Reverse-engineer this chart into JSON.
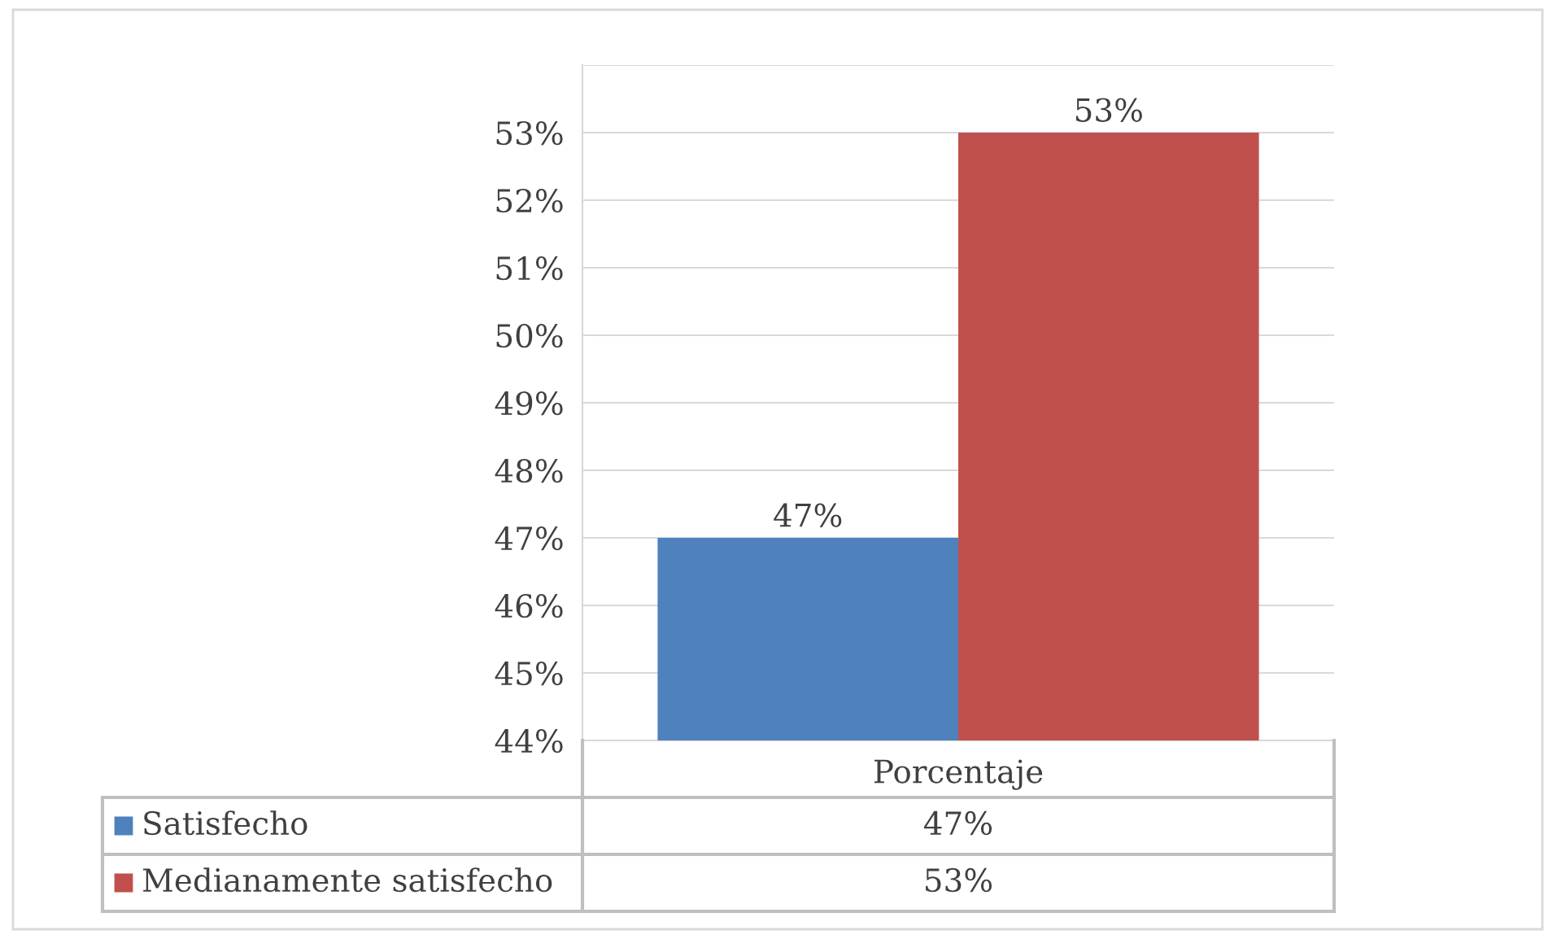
{
  "chart_data": {
    "type": "bar",
    "categories": [
      "Porcentaje"
    ],
    "series": [
      {
        "name": "Satisfecho",
        "color": "#4f81bd",
        "values": [
          47
        ],
        "value_labels": [
          "47%"
        ]
      },
      {
        "name": "Medianamente satisfecho",
        "color": "#c0504d",
        "values": [
          53
        ],
        "value_labels": [
          "53%"
        ]
      }
    ],
    "ylim": [
      44,
      54
    ],
    "yticks": [
      {
        "value": 44,
        "label": "44%"
      },
      {
        "value": 45,
        "label": "45%"
      },
      {
        "value": 46,
        "label": "46%"
      },
      {
        "value": 47,
        "label": "47%"
      },
      {
        "value": 48,
        "label": "48%"
      },
      {
        "value": 49,
        "label": "49%"
      },
      {
        "value": 50,
        "label": "50%"
      },
      {
        "value": 51,
        "label": "51%"
      },
      {
        "value": 52,
        "label": "52%"
      },
      {
        "value": 53,
        "label": "53%"
      },
      {
        "value": 54,
        "label": null
      }
    ],
    "grid": "y",
    "legend": "bottom"
  }
}
